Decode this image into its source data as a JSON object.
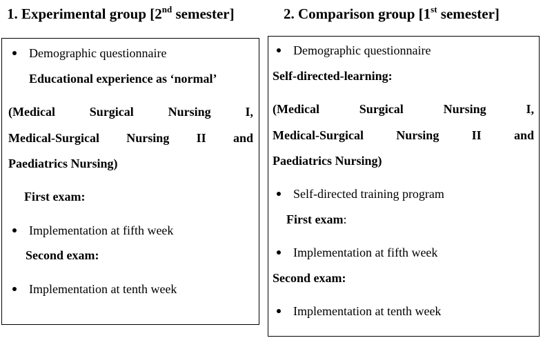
{
  "left": {
    "title_prefix": "1. Experimental group [2",
    "title_sup": "nd",
    "title_suffix": " semester]",
    "demographic": "Demographic questionnaire",
    "educational": "Educational experience as ‘normal’",
    "course_line1": [
      "(Medical",
      "Surgical",
      "Nursing",
      "I,"
    ],
    "course_line2": [
      "Medical-Surgical",
      "Nursing",
      "II",
      "and"
    ],
    "course_line3": "Paediatrics Nursing)",
    "first_exam": "First exam:",
    "impl_fifth": "Implementation at fifth week",
    "second_exam": "Second exam:",
    "impl_tenth": "Implementation at tenth week"
  },
  "right": {
    "title_prefix": "2. Comparison group [1",
    "title_sup": "st",
    "title_suffix": " semester]",
    "demographic": "Demographic questionnaire",
    "self_directed": "Self-directed-learning:",
    "course_line1": [
      "(Medical",
      "Surgical",
      "Nursing",
      "I,"
    ],
    "course_line2": [
      "Medical-Surgical",
      "Nursing",
      "II",
      "and"
    ],
    "course_line3": "Paediatrics Nursing)",
    "training": "Self-directed training program",
    "first_exam": "First exam",
    "first_exam_colon": ":",
    "impl_fifth": "Implementation at fifth week",
    "second_exam": "Second exam:",
    "impl_tenth": "Implementation at tenth week"
  }
}
